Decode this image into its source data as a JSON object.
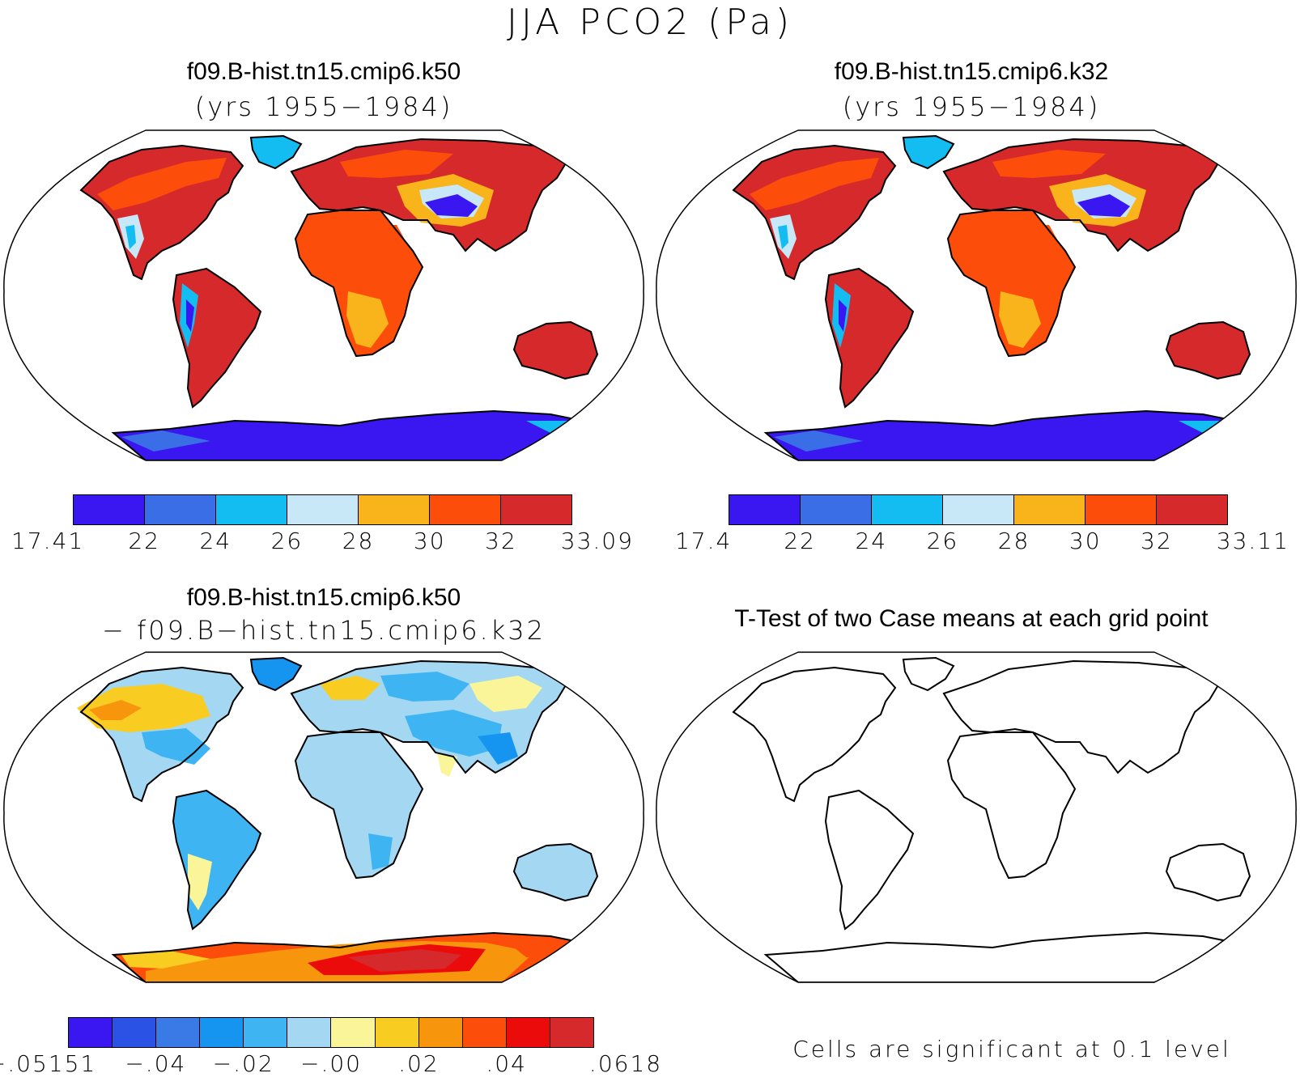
{
  "figure_title": "JJA PCO2 (Pa)",
  "panels": [
    {
      "id": "k50",
      "title": "f09.B-hist.tn15.cmip6.k50",
      "subtitle": "(yrs 1955−1984)",
      "colorbar": {
        "labels": [
          "17.41",
          "22",
          "24",
          "26",
          "28",
          "30",
          "32",
          "33.09"
        ],
        "colors": [
          "#3a16f0",
          "#3a6ee6",
          "#13bdf2",
          "#c8e8f8",
          "#f9b31b",
          "#fd4d0b",
          "#d6292b"
        ]
      }
    },
    {
      "id": "k32",
      "title": "f09.B-hist.tn15.cmip6.k32",
      "subtitle": "(yrs 1955−1984)",
      "colorbar": {
        "labels": [
          "17.4",
          "22",
          "24",
          "26",
          "28",
          "30",
          "32",
          "33.11"
        ],
        "colors": [
          "#3a16f0",
          "#3a6ee6",
          "#13bdf2",
          "#c8e8f8",
          "#f9b31b",
          "#fd4d0b",
          "#d6292b"
        ]
      }
    },
    {
      "id": "diff",
      "title": "f09.B-hist.tn15.cmip6.k50",
      "subtitle": "− f09.B−hist.tn15.cmip6.k32",
      "colorbar": {
        "labels": [
          "−.05151",
          "−.04",
          "−.02",
          "−.00",
          ".02",
          ".04",
          ".0618"
        ],
        "colors": [
          "#3a16f0",
          "#2a52e4",
          "#3a7ae6",
          "#1594f0",
          "#3eb5f2",
          "#a4d8f2",
          "#fbf59a",
          "#f9cc22",
          "#f7960c",
          "#fd4d0b",
          "#ec0b0b",
          "#d6292b"
        ]
      }
    },
    {
      "id": "ttest",
      "title": "T-Test of two Case means at each grid point",
      "note": "Cells are significant at 0.1 level"
    }
  ]
}
